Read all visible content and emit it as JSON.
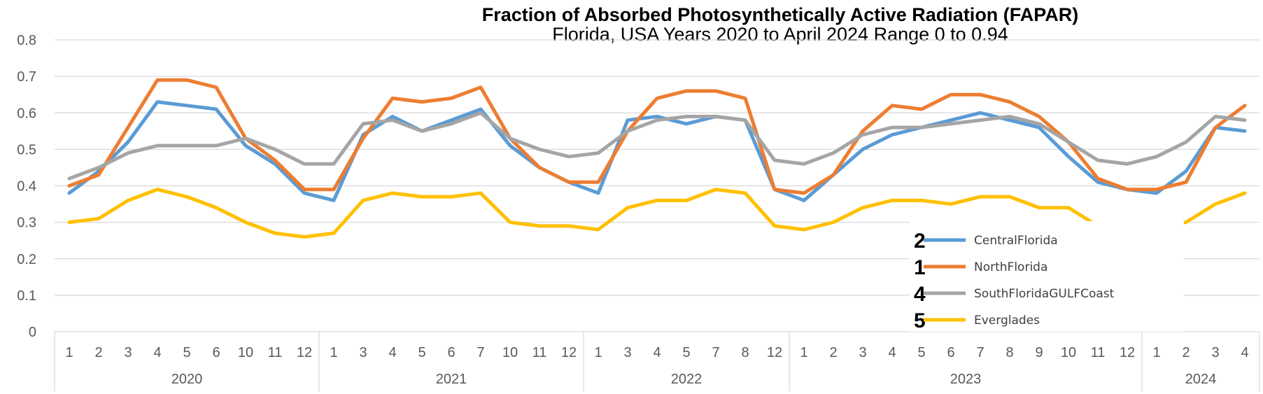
{
  "chart_data": {
    "type": "line",
    "title": "Fraction of Absorbed Photosynthetically Active Radiation (FAPAR)",
    "subtitle": "Florida, USA Years 2020 to April 2024 Range 0 to 0.94",
    "xlabel": "",
    "ylabel": "",
    "ylim": [
      0,
      0.8
    ],
    "yticks": [
      "0",
      "0.1",
      "0.2",
      "0.3",
      "0.4",
      "0.5",
      "0.6",
      "0.7",
      "0.8"
    ],
    "grid": true,
    "legend_position": "right",
    "categories": [
      "1",
      "2",
      "3",
      "4",
      "5",
      "6",
      "10",
      "11",
      "12",
      "1",
      "3",
      "4",
      "5",
      "6",
      "7",
      "10",
      "11",
      "12",
      "1",
      "3",
      "4",
      "5",
      "7",
      "8",
      "12",
      "1",
      "2",
      "3",
      "4",
      "5",
      "6",
      "7",
      "8",
      "9",
      "10",
      "11",
      "12",
      "1",
      "2",
      "3",
      "4"
    ],
    "year_groups": [
      {
        "label": "2020",
        "count": 9
      },
      {
        "label": "2021",
        "count": 9
      },
      {
        "label": "2022",
        "count": 7
      },
      {
        "label": "2023",
        "count": 12
      },
      {
        "label": "2024",
        "count": 4
      }
    ],
    "series": [
      {
        "name": "CentralFlorida",
        "legend_number": "2",
        "color": "#5B9BD5",
        "values": [
          0.38,
          0.44,
          0.52,
          0.63,
          0.62,
          0.61,
          0.51,
          0.46,
          0.38,
          0.36,
          0.54,
          0.59,
          0.55,
          0.58,
          0.61,
          0.51,
          0.45,
          0.41,
          0.38,
          0.58,
          0.59,
          0.57,
          0.59,
          0.58,
          0.39,
          0.36,
          0.43,
          0.5,
          0.54,
          0.56,
          0.58,
          0.6,
          0.58,
          0.56,
          0.48,
          0.41,
          0.39,
          0.38,
          0.44,
          0.56,
          0.55
        ]
      },
      {
        "name": "NorthFlorida",
        "legend_number": "1",
        "color": "#ED7D31",
        "values": [
          0.4,
          0.43,
          0.56,
          0.69,
          0.69,
          0.67,
          0.53,
          0.47,
          0.39,
          0.39,
          0.53,
          0.64,
          0.63,
          0.64,
          0.67,
          0.53,
          0.45,
          0.41,
          0.41,
          0.55,
          0.64,
          0.66,
          0.66,
          0.64,
          0.39,
          0.38,
          0.43,
          0.55,
          0.62,
          0.61,
          0.65,
          0.65,
          0.63,
          0.59,
          0.52,
          0.42,
          0.39,
          0.39,
          0.41,
          0.56,
          0.62
        ]
      },
      {
        "name": "SouthFloridaGULFCoast",
        "legend_number": "4",
        "color": "#A5A5A5",
        "values": [
          0.42,
          0.45,
          0.49,
          0.51,
          0.51,
          0.51,
          0.53,
          0.5,
          0.46,
          0.46,
          0.57,
          0.58,
          0.55,
          0.57,
          0.6,
          0.53,
          0.5,
          0.48,
          0.49,
          0.55,
          0.58,
          0.59,
          0.59,
          0.58,
          0.47,
          0.46,
          0.49,
          0.54,
          0.56,
          0.56,
          0.57,
          0.58,
          0.59,
          0.57,
          0.52,
          0.47,
          0.46,
          0.48,
          0.52,
          0.59,
          0.58
        ]
      },
      {
        "name": "Everglades",
        "legend_number": "5",
        "color": "#FFC000",
        "values": [
          0.3,
          0.31,
          0.36,
          0.39,
          0.37,
          0.34,
          0.3,
          0.27,
          0.26,
          0.27,
          0.36,
          0.38,
          0.37,
          0.37,
          0.38,
          0.3,
          0.29,
          0.29,
          0.28,
          0.34,
          0.36,
          0.36,
          0.39,
          0.38,
          0.29,
          0.28,
          0.3,
          0.34,
          0.36,
          0.36,
          0.35,
          0.37,
          0.37,
          0.34,
          0.34,
          0.29,
          0.28,
          0.29,
          0.3,
          0.35,
          0.38
        ]
      }
    ]
  }
}
